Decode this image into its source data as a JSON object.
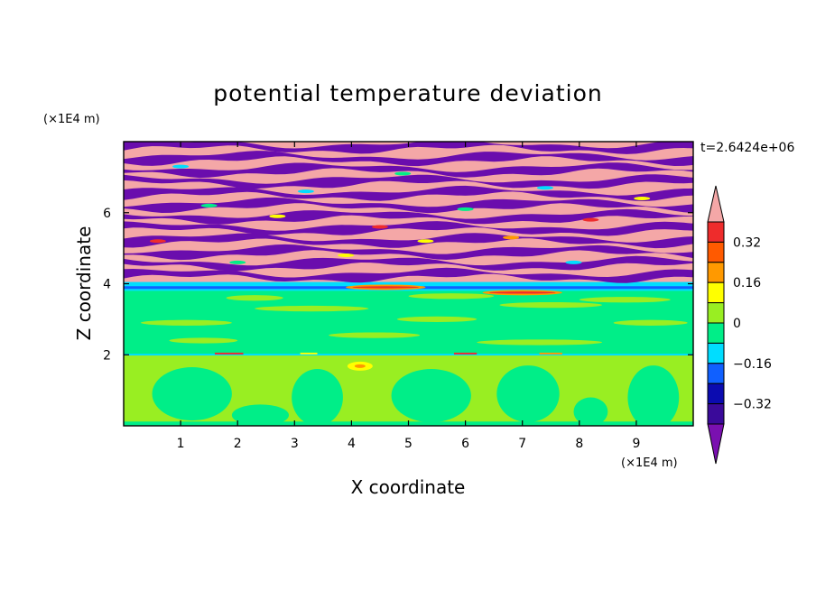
{
  "chart_data": {
    "type": "heatmap",
    "title": "potential temperature deviation",
    "xlabel": "X coordinate",
    "ylabel": "Z coordinate",
    "x_unit": "(×1E4 m)",
    "y_unit": "(×1E4 m)",
    "time_label": "t=2.6424e+06",
    "xlim": [
      0,
      10
    ],
    "ylim": [
      0,
      8
    ],
    "x_ticks": [
      "1",
      "2",
      "3",
      "4",
      "5",
      "6",
      "7",
      "8",
      "9"
    ],
    "y_ticks": [
      "2",
      "4",
      "6"
    ],
    "colorbar": {
      "tick_labels": [
        "0.32",
        "0.16",
        "0",
        "-0.16",
        "-0.32"
      ],
      "levels": [
        {
          "range": "above 0.4",
          "color": "#f4a7a7"
        },
        {
          "range": "0.32 to 0.4",
          "color": "#ee2c2c"
        },
        {
          "range": "0.24 to 0.32",
          "color": "#ff5a00"
        },
        {
          "range": "0.16 to 0.24",
          "color": "#ff9900"
        },
        {
          "range": "0.08 to 0.16",
          "color": "#ffff00"
        },
        {
          "range": "0 to 0.08",
          "color": "#99ee22"
        },
        {
          "range": "-0.08 to 0",
          "color": "#00ee88"
        },
        {
          "range": "-0.16 to -0.08",
          "color": "#00ddff"
        },
        {
          "range": "-0.24 to -0.16",
          "color": "#1060ff"
        },
        {
          "range": "-0.32 to -0.24",
          "color": "#0b0bb0"
        },
        {
          "range": "-0.4 to -0.32",
          "color": "#3a0a9a"
        },
        {
          "range": "below -0.4",
          "color": "#7a10b0"
        }
      ]
    },
    "field_description": {
      "upper_layer": {
        "z_range": [
          4,
          8
        ],
        "pattern": "alternating bands",
        "colors": [
          "#f4a7a7",
          "#6a0dad"
        ]
      },
      "interface_z": 3.9,
      "middle_layer": {
        "z_range": [
          2,
          3.9
        ],
        "dominant_color": "#00ee88"
      },
      "lower_layer": {
        "z_range": [
          0,
          2
        ],
        "dominant_color": "#99ee22",
        "plumes_color": "#00ee88"
      }
    }
  }
}
